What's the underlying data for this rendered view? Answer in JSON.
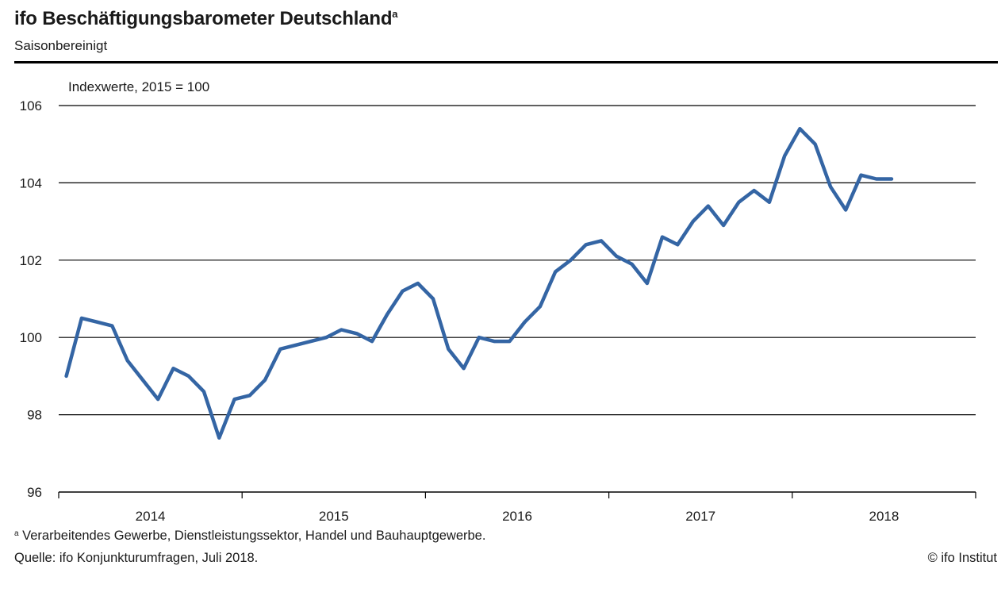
{
  "header": {
    "title": "ifo Beschäftigungsbarometer Deutschland",
    "title_footnote_mark": "a",
    "subtitle": "Saisonbereinigt"
  },
  "footer": {
    "footnote_mark": "a",
    "footnote": "Verarbeitendes Gewerbe, Dienstleistungssektor, Handel und Bauhauptgewerbe.",
    "source": "Quelle: ifo Konjunkturumfragen, Juli 2018.",
    "copyright": "© ifo Institut"
  },
  "chart_data": {
    "type": "line",
    "title": "ifo Beschäftigungsbarometer Deutschland",
    "ylabel": "Indexwerte, 2015 = 100",
    "xlabel": "",
    "ylim": [
      96,
      106
    ],
    "yticks": [
      "96",
      "98",
      "100",
      "102",
      "104",
      "106"
    ],
    "ytick_values": [
      96,
      98,
      100,
      102,
      104,
      106
    ],
    "xticks": [
      "2014",
      "2015",
      "2016",
      "2017",
      "2018"
    ],
    "x_range_months": 60,
    "grid": true,
    "line_color": "#3465a4",
    "series": [
      {
        "name": "ifo Beschäftigungsbarometer",
        "x_start": "2014-01",
        "values": [
          99.0,
          100.5,
          100.4,
          100.3,
          99.4,
          98.9,
          98.4,
          99.2,
          99.0,
          98.6,
          97.4,
          98.4,
          98.5,
          98.9,
          99.7,
          99.8,
          99.9,
          100.0,
          100.2,
          100.1,
          99.9,
          100.6,
          101.2,
          101.4,
          101.0,
          99.7,
          99.2,
          100.0,
          99.9,
          99.9,
          100.4,
          100.8,
          101.7,
          102.0,
          102.4,
          102.5,
          102.1,
          101.9,
          101.4,
          102.6,
          102.4,
          103.0,
          103.4,
          102.9,
          103.5,
          103.8,
          103.5,
          104.7,
          105.4,
          105.0,
          103.9,
          103.3,
          104.2,
          104.1,
          104.1
        ]
      }
    ]
  }
}
